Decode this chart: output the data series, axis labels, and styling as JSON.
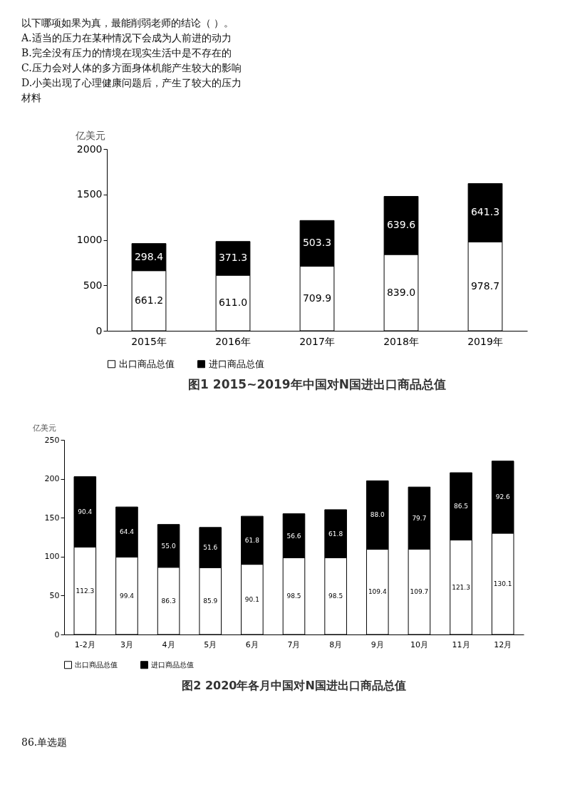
{
  "chart_data": [
    {
      "type": "bar",
      "stacked": true,
      "title": "图1  2015~2019年中国对N国进出口商品总值",
      "ylabel": "亿美元",
      "categories": [
        "2015年",
        "2016年",
        "2017年",
        "2018年",
        "2019年"
      ],
      "series": [
        {
          "name": "出口商品总值",
          "color": "#ffffff",
          "values": [
            661.2,
            611.0,
            709.9,
            839.0,
            978.7
          ],
          "value_labels": [
            "661.2",
            "611.0",
            "709.9",
            "839.0",
            "978.7"
          ]
        },
        {
          "name": "进口商品总值",
          "color": "#000000",
          "values": [
            298.4,
            371.3,
            503.3,
            639.6,
            641.3
          ],
          "value_labels": [
            "298.4",
            "371.3",
            "503.3",
            "639.6",
            "641.3"
          ]
        }
      ],
      "ylim": [
        0,
        2000
      ],
      "yticks": [
        0,
        500,
        1000,
        1500,
        2000
      ],
      "legend": "bottom",
      "annotations": [
        "以下哪项如果为真，最能削弱老师的结论（      ）。",
        "A.适当的压力在某种情况下会成为人前进的动力",
        "B.完全没有压力的情境在现实生活中是不存在的",
        "C.压力会对人体的多方面身体机能产生较大的影响",
        "D.小美出现了心理健康问题后，产生了较大的压力",
        "材料"
      ]
    },
    {
      "type": "bar",
      "stacked": true,
      "title": "图2  2020年各月中国对N国进出口商品总值",
      "ylabel": "亿美元",
      "categories": [
        "1-2月",
        "3月",
        "4月",
        "5月",
        "6月",
        "7月",
        "8月",
        "9月",
        "10月",
        "11月",
        "12月"
      ],
      "series": [
        {
          "name": "出口商品总值",
          "color": "#ffffff",
          "values": [
            112.3,
            99.4,
            86.3,
            85.9,
            90.1,
            98.5,
            98.5,
            109.4,
            109.7,
            121.3,
            130.1
          ],
          "value_labels": [
            "112.3",
            "99.4",
            "86.3",
            "85.9",
            "90.1",
            "98.5",
            "98.5",
            "109.4",
            "109.7",
            "121.3",
            "130.1"
          ]
        },
        {
          "name": "进口商品总值",
          "color": "#000000",
          "values": [
            90.4,
            64.4,
            55.0,
            51.6,
            61.8,
            56.6,
            61.8,
            88.0,
            79.7,
            86.5,
            92.6
          ],
          "value_labels": [
            "90.4",
            "64.4",
            "55.0",
            "51.6",
            "61.8",
            "56.6",
            "61.8",
            "88.0",
            "79.7",
            "86.5",
            "92.6"
          ]
        }
      ],
      "ylim": [
        0,
        250
      ],
      "yticks": [
        0,
        50,
        100,
        150,
        200,
        250
      ],
      "legend": "bottom",
      "annotations": [
        "86.单选题"
      ]
    }
  ]
}
